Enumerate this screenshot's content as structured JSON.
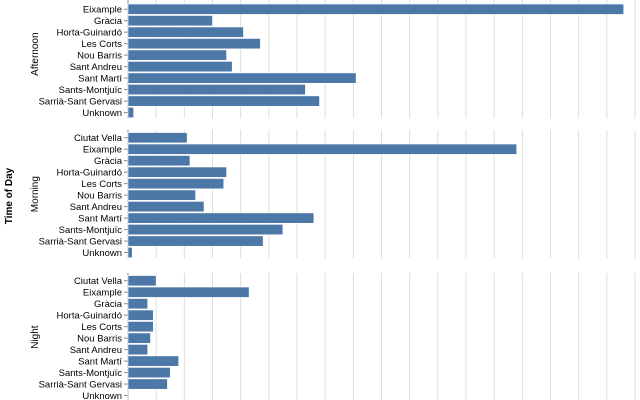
{
  "chart_data": {
    "type": "bar",
    "orientation": "horizontal",
    "facet_title": "Time of Day",
    "categories": [
      "Ciutat Vella",
      "Eixample",
      "Gràcia",
      "Horta-Guinardó",
      "Les Corts",
      "Nou Barris",
      "Sant Andreu",
      "Sant Martí",
      "Sants-Montjuïc",
      "Sarrià-Sant Gervasi",
      "Unknown"
    ],
    "xlim": [
      0,
      180
    ],
    "grid": true,
    "bar_color": "#4c78a8",
    "panels": [
      {
        "name": "Afternoon",
        "values": [
          null,
          176,
          30,
          41,
          47,
          35,
          37,
          81,
          63,
          68,
          2
        ]
      },
      {
        "name": "Morning",
        "values": [
          21,
          138,
          22,
          35,
          34,
          24,
          27,
          66,
          55,
          48,
          1.5
        ]
      },
      {
        "name": "Night",
        "values": [
          10,
          43,
          7,
          9,
          9,
          8,
          7,
          18,
          15,
          14,
          0.3
        ]
      }
    ]
  }
}
